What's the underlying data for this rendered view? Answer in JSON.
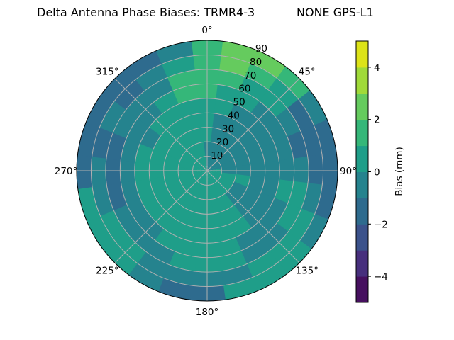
{
  "chart_data": {
    "type": "heatmap",
    "subtype": "polar-filled-contour",
    "title_left": "Delta Antenna Phase Biases: TRMR4-3",
    "title_right": "NONE GPS-L1",
    "theta_direction": "clockwise",
    "theta_zero": "top",
    "theta_ticks": [
      "0°",
      "45°",
      "90°",
      "135°",
      "180°",
      "225°",
      "270°",
      "315°"
    ],
    "theta_tick_values": [
      0,
      45,
      90,
      135,
      180,
      225,
      270,
      315
    ],
    "r_ticks": [
      "10",
      "20",
      "30",
      "40",
      "50",
      "60",
      "70",
      "80",
      "90"
    ],
    "r_tick_values": [
      10,
      20,
      30,
      40,
      50,
      60,
      70,
      80,
      90
    ],
    "rlim": [
      0,
      90
    ],
    "grid": true,
    "colorbar": {
      "label": "Bias (mm)",
      "range": [
        -5,
        5
      ],
      "ticks": [
        "−4",
        "−2",
        "0",
        "2",
        "4"
      ],
      "tick_values": [
        -4,
        -2,
        0,
        2,
        4
      ],
      "level_edges": [
        -5,
        -4,
        -3,
        -2,
        -1,
        0,
        1,
        2,
        3,
        4,
        5
      ],
      "level_colors": [
        "#46105f",
        "#472f7d",
        "#3b528b",
        "#2e6b8e",
        "#25838e",
        "#1f9e89",
        "#35b779",
        "#65cb5e",
        "#a0da39",
        "#dde318"
      ],
      "colormap": "viridis"
    },
    "grid_azimuths": [
      0,
      15,
      30,
      45,
      60,
      75,
      90,
      105,
      120,
      135,
      150,
      165,
      180,
      195,
      210,
      225,
      240,
      255,
      270,
      285,
      300,
      315,
      330,
      345
    ],
    "grid_radii": [
      5,
      15,
      25,
      35,
      45,
      55,
      65,
      75,
      85
    ],
    "values": [
      [
        -0.5,
        -0.5,
        0.3,
        0.3,
        0.5,
        1.5,
        1.5,
        1.5,
        1.5
      ],
      [
        -0.5,
        -0.5,
        -0.5,
        -0.5,
        0.5,
        0.5,
        1.5,
        2.5,
        2.5
      ],
      [
        -0.5,
        -0.5,
        -0.5,
        -0.5,
        -0.5,
        0.5,
        0.5,
        1.5,
        2.5
      ],
      [
        -0.5,
        -0.5,
        -0.5,
        -0.5,
        -0.5,
        -0.5,
        0.5,
        0.5,
        1.5
      ],
      [
        -0.5,
        -0.5,
        -0.5,
        -0.5,
        -0.5,
        -0.5,
        -0.5,
        -1.5,
        -0.5
      ],
      [
        -0.5,
        -0.5,
        -0.5,
        -0.5,
        -0.5,
        -0.5,
        -1.5,
        -1.5,
        -1.5
      ],
      [
        0.5,
        -0.5,
        -0.5,
        -0.5,
        -0.5,
        -0.5,
        -0.5,
        -1.5,
        -1.5
      ],
      [
        0.5,
        0.5,
        0.5,
        -0.5,
        -0.5,
        0.5,
        0.5,
        -0.5,
        -1.5
      ],
      [
        0.5,
        0.5,
        -0.5,
        -0.5,
        -0.5,
        -0.5,
        0.5,
        0.5,
        -0.5
      ],
      [
        0.5,
        0.5,
        -0.5,
        -0.5,
        -0.5,
        -0.5,
        -0.5,
        0.5,
        0.5
      ],
      [
        0.5,
        0.5,
        0.5,
        0.5,
        0.5,
        -0.5,
        -0.5,
        0.5,
        0.5
      ],
      [
        0.5,
        0.5,
        0.5,
        0.5,
        0.5,
        0.5,
        0.5,
        -0.5,
        0.5
      ],
      [
        0.5,
        0.5,
        0.5,
        0.5,
        0.5,
        0.5,
        0.5,
        -0.5,
        -1.5
      ],
      [
        0.5,
        0.5,
        0.5,
        0.5,
        0.5,
        0.5,
        0.5,
        -0.5,
        -1.5
      ],
      [
        0.5,
        0.5,
        0.5,
        0.5,
        0.5,
        0.5,
        -0.5,
        -0.5,
        -0.5
      ],
      [
        0.5,
        0.5,
        0.5,
        0.5,
        0.5,
        -0.5,
        -0.5,
        0.5,
        0.5
      ],
      [
        0.5,
        0.5,
        0.5,
        0.5,
        0.5,
        -0.5,
        -0.5,
        0.5,
        0.5
      ],
      [
        0.5,
        0.5,
        0.5,
        0.5,
        0.5,
        -0.5,
        -1.5,
        -0.5,
        0.5
      ],
      [
        0.5,
        0.5,
        0.5,
        0.5,
        0.5,
        -0.5,
        -1.5,
        -0.5,
        -1.5
      ],
      [
        0.5,
        0.5,
        0.5,
        0.5,
        0.5,
        -0.5,
        -1.5,
        -1.5,
        -1.5
      ],
      [
        0.5,
        0.5,
        0.5,
        0.5,
        -0.5,
        -0.5,
        -0.5,
        -0.5,
        -1.5
      ],
      [
        0.5,
        0.5,
        0.5,
        0.5,
        0.5,
        -0.5,
        -0.5,
        -1.5,
        -1.5
      ],
      [
        0.5,
        0.5,
        0.5,
        0.5,
        0.5,
        0.5,
        -0.5,
        -0.5,
        -1.5
      ],
      [
        0.5,
        0.5,
        0.5,
        0.5,
        0.5,
        1.5,
        1.5,
        0.5,
        -0.5
      ]
    ]
  }
}
